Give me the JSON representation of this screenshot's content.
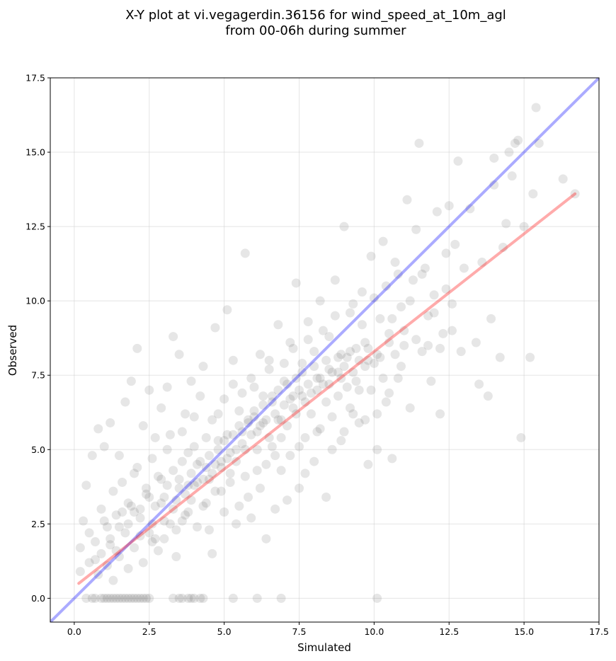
{
  "chart_data": {
    "type": "scatter",
    "title_lines": [
      "X-Y plot at vi.vegagerdin.36156 for wind_speed_at_10m_agl",
      "from 00-06h during summer"
    ],
    "xlabel": "Simulated",
    "ylabel": "Observed",
    "xlim": [
      -0.8,
      17.5
    ],
    "ylim": [
      -0.8,
      17.5
    ],
    "xticks": [
      0.0,
      2.5,
      5.0,
      7.5,
      10.0,
      12.5,
      15.0,
      17.5
    ],
    "xtick_labels": [
      "0.0",
      "2.5",
      "5.0",
      "7.5",
      "10.0",
      "12.5",
      "15.0",
      "17.5"
    ],
    "yticks": [
      0.0,
      2.5,
      5.0,
      7.5,
      10.0,
      12.5,
      15.0,
      17.5
    ],
    "ytick_labels": [
      "0.0",
      "2.5",
      "5.0",
      "7.5",
      "10.0",
      "12.5",
      "15.0",
      "17.5"
    ],
    "grid": true,
    "point_color": "#555555",
    "identity_line": {
      "color": "#0000ff",
      "from": [
        -0.8,
        -0.8
      ],
      "to": [
        17.5,
        17.5
      ]
    },
    "fit_line": {
      "color": "#ff0000",
      "from": [
        0.15,
        0.5
      ],
      "to": [
        16.7,
        13.6
      ]
    },
    "points": [
      [
        0.6,
        0
      ],
      [
        0.9,
        0
      ],
      [
        1.1,
        0
      ],
      [
        1.3,
        0
      ],
      [
        1.5,
        0
      ],
      [
        1.6,
        0
      ],
      [
        1.8,
        0
      ],
      [
        1.9,
        0
      ],
      [
        2.1,
        0
      ],
      [
        2.3,
        0
      ],
      [
        2.5,
        0
      ],
      [
        3.3,
        0
      ],
      [
        3.6,
        0
      ],
      [
        3.8,
        0
      ],
      [
        4.0,
        0
      ],
      [
        4.3,
        0
      ],
      [
        5.3,
        0
      ],
      [
        6.1,
        0
      ],
      [
        6.9,
        0
      ],
      [
        10.1,
        0
      ],
      [
        0.2,
        0.9
      ],
      [
        0.2,
        1.7
      ],
      [
        0.3,
        2.6
      ],
      [
        0.4,
        3.8
      ],
      [
        0.5,
        2.2
      ],
      [
        0.6,
        4.8
      ],
      [
        0.7,
        1.3
      ],
      [
        0.8,
        5.7
      ],
      [
        0.9,
        3.0
      ],
      [
        1.0,
        5.1
      ],
      [
        1.1,
        2.4
      ],
      [
        1.2,
        5.9
      ],
      [
        1.3,
        3.6
      ],
      [
        1.4,
        1.6
      ],
      [
        1.5,
        4.8
      ],
      [
        1.6,
        2.9
      ],
      [
        1.7,
        6.6
      ],
      [
        1.8,
        3.2
      ],
      [
        1.9,
        7.3
      ],
      [
        2.0,
        4.2
      ],
      [
        2.1,
        8.4
      ],
      [
        2.2,
        2.1
      ],
      [
        2.3,
        5.8
      ],
      [
        2.4,
        3.7
      ],
      [
        2.5,
        7.0
      ],
      [
        2.6,
        1.9
      ],
      [
        2.7,
        5.4
      ],
      [
        2.8,
        4.1
      ],
      [
        2.9,
        6.4
      ],
      [
        3.0,
        2.6
      ],
      [
        3.1,
        7.1
      ],
      [
        3.2,
        5.5
      ],
      [
        3.3,
        8.8
      ],
      [
        3.4,
        3.3
      ],
      [
        3.5,
        8.2
      ],
      [
        3.6,
        4.6
      ],
      [
        3.7,
        6.2
      ],
      [
        3.8,
        2.9
      ],
      [
        3.9,
        7.3
      ],
      [
        4.0,
        5.1
      ],
      [
        4.1,
        3.9
      ],
      [
        4.2,
        6.8
      ],
      [
        4.3,
        7.8
      ],
      [
        4.4,
        4.4
      ],
      [
        4.5,
        2.3
      ],
      [
        4.6,
        6.0
      ],
      [
        4.7,
        9.1
      ],
      [
        4.8,
        5.3
      ],
      [
        4.9,
        3.6
      ],
      [
        5.0,
        6.7
      ],
      [
        5.1,
        9.7
      ],
      [
        5.2,
        4.9
      ],
      [
        5.3,
        8.0
      ],
      [
        5.4,
        2.5
      ],
      [
        5.5,
        6.3
      ],
      [
        5.6,
        5.6
      ],
      [
        5.7,
        11.6
      ],
      [
        5.8,
        3.4
      ],
      [
        5.9,
        7.4
      ],
      [
        6.0,
        6.1
      ],
      [
        6.1,
        4.3
      ],
      [
        6.2,
        8.2
      ],
      [
        6.3,
        5.9
      ],
      [
        6.4,
        2.0
      ],
      [
        6.5,
        7.7
      ],
      [
        6.6,
        6.6
      ],
      [
        6.7,
        4.8
      ],
      [
        6.8,
        9.2
      ],
      [
        6.9,
        5.4
      ],
      [
        7.0,
        7.3
      ],
      [
        7.1,
        3.3
      ],
      [
        7.2,
        8.6
      ],
      [
        7.3,
        6.4
      ],
      [
        7.4,
        10.6
      ],
      [
        7.5,
        5.1
      ],
      [
        7.6,
        7.9
      ],
      [
        7.7,
        4.2
      ],
      [
        7.8,
        9.3
      ],
      [
        7.9,
        6.9
      ],
      [
        8.0,
        8.3
      ],
      [
        8.1,
        5.6
      ],
      [
        8.2,
        10.0
      ],
      [
        8.3,
        7.2
      ],
      [
        8.4,
        3.4
      ],
      [
        8.5,
        8.8
      ],
      [
        8.6,
        6.1
      ],
      [
        8.7,
        10.7
      ],
      [
        8.8,
        7.6
      ],
      [
        8.9,
        5.3
      ],
      [
        9.0,
        12.5
      ],
      [
        9.1,
        8.1
      ],
      [
        9.2,
        6.4
      ],
      [
        9.3,
        9.9
      ],
      [
        9.4,
        7.3
      ],
      [
        9.5,
        5.9
      ],
      [
        9.6,
        10.3
      ],
      [
        9.7,
        8.6
      ],
      [
        9.8,
        4.5
      ],
      [
        9.9,
        11.5
      ],
      [
        10.0,
        7.9
      ],
      [
        10.1,
        5.0
      ],
      [
        10.2,
        9.4
      ],
      [
        10.3,
        12.0
      ],
      [
        10.4,
        6.6
      ],
      [
        10.5,
        8.9
      ],
      [
        10.6,
        4.7
      ],
      [
        10.7,
        11.3
      ],
      [
        10.8,
        7.4
      ],
      [
        10.9,
        9.8
      ],
      [
        11.0,
        8.5
      ],
      [
        11.1,
        13.4
      ],
      [
        11.2,
        6.4
      ],
      [
        11.3,
        10.7
      ],
      [
        11.4,
        12.4
      ],
      [
        11.5,
        15.3
      ],
      [
        11.6,
        8.3
      ],
      [
        11.7,
        11.1
      ],
      [
        11.8,
        9.5
      ],
      [
        11.9,
        7.3
      ],
      [
        12.0,
        10.2
      ],
      [
        12.1,
        13.0
      ],
      [
        12.2,
        6.2
      ],
      [
        12.3,
        8.9
      ],
      [
        12.4,
        11.6
      ],
      [
        12.5,
        13.2
      ],
      [
        12.6,
        9.9
      ],
      [
        12.7,
        11.9
      ],
      [
        12.8,
        14.7
      ],
      [
        12.9,
        8.3
      ],
      [
        13.0,
        11.1
      ],
      [
        13.2,
        13.1
      ],
      [
        13.4,
        8.6
      ],
      [
        13.5,
        7.2
      ],
      [
        13.6,
        11.3
      ],
      [
        13.8,
        6.8
      ],
      [
        13.9,
        9.4
      ],
      [
        14.0,
        13.9
      ],
      [
        14.0,
        14.8
      ],
      [
        14.2,
        8.1
      ],
      [
        14.3,
        11.8
      ],
      [
        14.4,
        12.6
      ],
      [
        14.5,
        15.0
      ],
      [
        14.6,
        14.2
      ],
      [
        14.7,
        15.3
      ],
      [
        14.8,
        15.4
      ],
      [
        14.9,
        5.4
      ],
      [
        15.0,
        12.5
      ],
      [
        15.2,
        8.1
      ],
      [
        15.3,
        13.6
      ],
      [
        15.4,
        16.5
      ],
      [
        15.5,
        15.3
      ],
      [
        16.3,
        14.1
      ],
      [
        16.7,
        13.6
      ],
      [
        0.4,
        0
      ],
      [
        0.7,
        0
      ],
      [
        1.0,
        0
      ],
      [
        1.2,
        0
      ],
      [
        1.4,
        0
      ],
      [
        1.7,
        0
      ],
      [
        2.0,
        0
      ],
      [
        2.2,
        0
      ],
      [
        2.4,
        0
      ],
      [
        3.5,
        0
      ],
      [
        3.9,
        0
      ],
      [
        4.2,
        0
      ],
      [
        0.5,
        1.2
      ],
      [
        0.7,
        1.9
      ],
      [
        0.8,
        0.8
      ],
      [
        0.9,
        1.5
      ],
      [
        1.0,
        2.6
      ],
      [
        1.1,
        1.1
      ],
      [
        1.2,
        2.0
      ],
      [
        1.3,
        0.6
      ],
      [
        1.4,
        2.8
      ],
      [
        1.5,
        1.4
      ],
      [
        1.6,
        3.9
      ],
      [
        1.7,
        2.2
      ],
      [
        1.8,
        1.0
      ],
      [
        1.9,
        3.1
      ],
      [
        2.0,
        1.7
      ],
      [
        2.1,
        4.4
      ],
      [
        2.2,
        2.7
      ],
      [
        2.3,
        1.2
      ],
      [
        2.4,
        3.5
      ],
      [
        2.5,
        2.2
      ],
      [
        2.6,
        4.7
      ],
      [
        2.7,
        3.1
      ],
      [
        2.8,
        1.6
      ],
      [
        2.9,
        4.0
      ],
      [
        3.0,
        3.4
      ],
      [
        3.1,
        5.0
      ],
      [
        3.2,
        2.5
      ],
      [
        3.3,
        4.3
      ],
      [
        3.4,
        1.4
      ],
      [
        3.5,
        3.7
      ],
      [
        3.6,
        5.6
      ],
      [
        3.7,
        2.8
      ],
      [
        3.8,
        4.9
      ],
      [
        3.9,
        3.3
      ],
      [
        4.0,
        6.1
      ],
      [
        4.1,
        2.4
      ],
      [
        4.2,
        4.6
      ],
      [
        4.3,
        3.1
      ],
      [
        4.4,
        5.4
      ],
      [
        4.5,
        4.0
      ],
      [
        4.6,
        1.5
      ],
      [
        4.7,
        3.6
      ],
      [
        4.8,
        6.2
      ],
      [
        4.9,
        4.6
      ],
      [
        5.0,
        2.9
      ],
      [
        5.1,
        5.5
      ],
      [
        5.2,
        3.9
      ],
      [
        5.3,
        7.2
      ],
      [
        5.4,
        4.6
      ],
      [
        5.5,
        3.1
      ],
      [
        5.6,
        6.9
      ],
      [
        5.7,
        4.1
      ],
      [
        5.8,
        5.9
      ],
      [
        5.9,
        2.7
      ],
      [
        6.0,
        7.1
      ],
      [
        6.1,
        5.0
      ],
      [
        6.2,
        3.7
      ],
      [
        6.3,
        6.8
      ],
      [
        6.4,
        4.5
      ],
      [
        6.5,
        8.0
      ],
      [
        6.6,
        5.1
      ],
      [
        6.7,
        3.0
      ],
      [
        6.8,
        6.0
      ],
      [
        6.9,
        4.3
      ],
      [
        7.0,
        7.9
      ],
      [
        7.1,
        5.8
      ],
      [
        7.2,
        4.8
      ],
      [
        7.3,
        8.4
      ],
      [
        7.4,
        6.2
      ],
      [
        7.5,
        3.7
      ],
      [
        7.6,
        6.8
      ],
      [
        7.7,
        5.4
      ],
      [
        7.8,
        8.7
      ],
      [
        7.9,
        6.2
      ],
      [
        8.0,
        4.6
      ],
      [
        8.1,
        7.4
      ],
      [
        8.2,
        5.7
      ],
      [
        8.3,
        9.0
      ],
      [
        8.4,
        6.6
      ],
      [
        8.5,
        7.7
      ],
      [
        8.6,
        5.0
      ],
      [
        8.7,
        9.5
      ],
      [
        8.8,
        6.8
      ],
      [
        8.9,
        8.2
      ],
      [
        9.0,
        5.6
      ],
      [
        9.1,
        7.1
      ],
      [
        9.2,
        9.6
      ],
      [
        9.3,
        6.2
      ],
      [
        9.4,
        8.4
      ],
      [
        9.5,
        7.0
      ],
      [
        9.6,
        9.2
      ],
      [
        9.7,
        6.0
      ],
      [
        9.8,
        8.0
      ],
      [
        9.9,
        7.0
      ],
      [
        10.0,
        10.1
      ],
      [
        10.1,
        6.2
      ],
      [
        10.2,
        8.1
      ],
      [
        10.3,
        7.4
      ],
      [
        10.4,
        10.5
      ],
      [
        10.5,
        6.9
      ],
      [
        10.6,
        9.4
      ],
      [
        10.7,
        8.2
      ],
      [
        10.8,
        10.9
      ],
      [
        10.9,
        7.8
      ],
      [
        11.0,
        9.0
      ],
      [
        11.2,
        10.0
      ],
      [
        11.4,
        8.7
      ],
      [
        11.6,
        10.9
      ],
      [
        11.8,
        8.5
      ],
      [
        12.0,
        9.6
      ],
      [
        12.2,
        8.4
      ],
      [
        12.4,
        10.4
      ],
      [
        12.6,
        9.0
      ],
      [
        1.2,
        1.8
      ],
      [
        1.8,
        2.5
      ],
      [
        2.2,
        3.0
      ],
      [
        2.6,
        2.5
      ],
      [
        2.9,
        3.2
      ],
      [
        3.1,
        3.8
      ],
      [
        3.3,
        3.0
      ],
      [
        3.5,
        4.0
      ],
      [
        3.7,
        3.5
      ],
      [
        3.9,
        4.2
      ],
      [
        4.0,
        3.8
      ],
      [
        4.1,
        4.5
      ],
      [
        4.3,
        4.0
      ],
      [
        4.5,
        4.8
      ],
      [
        4.6,
        4.2
      ],
      [
        4.8,
        5.0
      ],
      [
        4.9,
        4.4
      ],
      [
        5.0,
        5.3
      ],
      [
        5.1,
        4.7
      ],
      [
        5.3,
        5.5
      ],
      [
        5.4,
        5.0
      ],
      [
        5.5,
        5.8
      ],
      [
        5.6,
        5.2
      ],
      [
        5.8,
        6.0
      ],
      [
        5.9,
        5.5
      ],
      [
        6.0,
        6.3
      ],
      [
        6.2,
        5.8
      ],
      [
        6.3,
        6.5
      ],
      [
        6.4,
        6.0
      ],
      [
        6.6,
        6.8
      ],
      [
        6.7,
        6.2
      ],
      [
        6.8,
        7.0
      ],
      [
        7.0,
        6.5
      ],
      [
        7.1,
        7.2
      ],
      [
        7.2,
        6.7
      ],
      [
        7.4,
        7.4
      ],
      [
        7.5,
        7.0
      ],
      [
        7.6,
        7.6
      ],
      [
        7.8,
        7.2
      ],
      [
        8.0,
        7.8
      ],
      [
        8.2,
        7.4
      ],
      [
        8.4,
        8.0
      ],
      [
        8.6,
        7.6
      ],
      [
        8.8,
        8.1
      ],
      [
        9.0,
        7.8
      ],
      [
        9.2,
        8.3
      ],
      [
        9.5,
        8.0
      ],
      [
        9.8,
        8.4
      ],
      [
        1.5,
        2.4
      ],
      [
        2.0,
        2.9
      ],
      [
        2.5,
        3.4
      ],
      [
        2.7,
        2.0
      ],
      [
        3.0,
        2.0
      ],
      [
        3.4,
        2.3
      ],
      [
        3.6,
        2.6
      ],
      [
        3.8,
        3.8
      ],
      [
        4.4,
        3.2
      ],
      [
        4.7,
        4.5
      ],
      [
        5.2,
        4.2
      ],
      [
        5.7,
        5.0
      ],
      [
        6.1,
        5.6
      ],
      [
        6.5,
        5.4
      ],
      [
        6.9,
        6.0
      ],
      [
        7.3,
        6.8
      ],
      [
        7.7,
        6.6
      ],
      [
        8.1,
        7.0
      ],
      [
        8.5,
        7.2
      ],
      [
        8.9,
        7.4
      ],
      [
        9.3,
        7.6
      ],
      [
        9.7,
        7.8
      ],
      [
        10.1,
        8.2
      ],
      [
        10.5,
        8.6
      ]
    ]
  }
}
